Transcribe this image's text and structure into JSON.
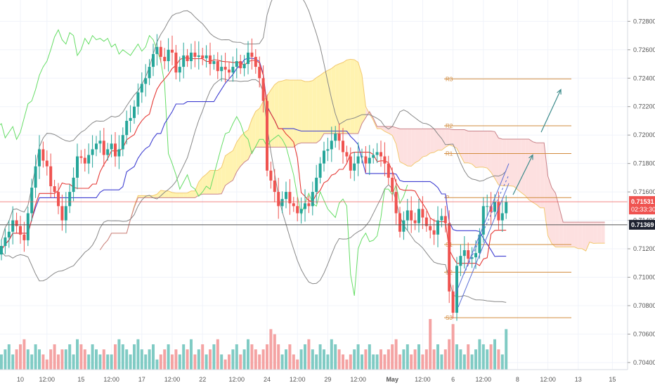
{
  "chart_data": {
    "type": "candlestick",
    "ylim": [
      0.7035,
      0.7295
    ],
    "price_axis": {
      "ticks": [
        {
          "label": "0.72800",
          "value": 0.728
        },
        {
          "label": "0.72600",
          "value": 0.726
        },
        {
          "label": "0.72400",
          "value": 0.724
        },
        {
          "label": "0.72200",
          "value": 0.722
        },
        {
          "label": "0.72000",
          "value": 0.72
        },
        {
          "label": "0.71800",
          "value": 0.718
        },
        {
          "label": "0.71600",
          "value": 0.716
        },
        {
          "label": "0.71400",
          "value": 0.714
        },
        {
          "label": "0.71200",
          "value": 0.712
        },
        {
          "label": "0.71000",
          "value": 0.71
        },
        {
          "label": "0.70800",
          "value": 0.708
        },
        {
          "label": "0.70600",
          "value": 0.706
        },
        {
          "label": "0.70400",
          "value": 0.704
        }
      ],
      "current_price": {
        "value": 0.71531,
        "label": "0.71531",
        "countdown": "02:33:30",
        "color": "#ef5350"
      },
      "crosshair_price": {
        "value": 0.71369,
        "label": "0.71369"
      }
    },
    "time_axis": [
      {
        "label": "10",
        "bar": 5
      },
      {
        "label": "12:00",
        "bar": 12
      },
      {
        "label": "15",
        "bar": 21
      },
      {
        "label": "12:00",
        "bar": 29
      },
      {
        "label": "17",
        "bar": 37
      },
      {
        "label": "12:00",
        "bar": 45
      },
      {
        "label": "22",
        "bar": 53
      },
      {
        "label": "12:00",
        "bar": 62
      },
      {
        "label": "24",
        "bar": 70
      },
      {
        "label": "12:00",
        "bar": 78
      },
      {
        "label": "29",
        "bar": 86
      },
      {
        "label": "12:00",
        "bar": 94
      },
      {
        "label": "May",
        "bar": 103
      },
      {
        "label": "12:00",
        "bar": 111
      },
      {
        "label": "6",
        "bar": 119
      },
      {
        "label": "12:00",
        "bar": 127
      },
      {
        "label": "8",
        "bar": 136
      },
      {
        "label": "12:00",
        "bar": 144
      },
      {
        "label": "13",
        "bar": 152
      },
      {
        "label": "15",
        "bar": 161
      }
    ],
    "close": [
      0.7122,
      0.7128,
      0.7132,
      0.714,
      0.7136,
      0.713,
      0.7126,
      0.7145,
      0.7163,
      0.7178,
      0.719,
      0.7182,
      0.7178,
      0.7164,
      0.716,
      0.715,
      0.714,
      0.715,
      0.716,
      0.717,
      0.7185,
      0.7184,
      0.718,
      0.7186,
      0.719,
      0.7194,
      0.7196,
      0.7186,
      0.719,
      0.7194,
      0.7185,
      0.719,
      0.72,
      0.721,
      0.7212,
      0.722,
      0.723,
      0.7236,
      0.724,
      0.7248,
      0.7257,
      0.7262,
      0.7255,
      0.7252,
      0.726,
      0.7258,
      0.7244,
      0.7248,
      0.7256,
      0.7252,
      0.7258,
      0.7255,
      0.7256,
      0.7254,
      0.7256,
      0.725,
      0.7252,
      0.7245,
      0.7248,
      0.7246,
      0.7244,
      0.7248,
      0.7252,
      0.7247,
      0.725,
      0.7258,
      0.7255,
      0.7248,
      0.724,
      0.7224,
      0.7175,
      0.7168,
      0.716,
      0.715,
      0.7155,
      0.716,
      0.7152,
      0.715,
      0.7145,
      0.7148,
      0.7152,
      0.715,
      0.716,
      0.717,
      0.718,
      0.7189,
      0.719,
      0.7196,
      0.7201,
      0.7196,
      0.7188,
      0.7185,
      0.7175,
      0.718,
      0.7185,
      0.7185,
      0.718,
      0.7184,
      0.7186,
      0.7188,
      0.7185,
      0.718,
      0.717,
      0.716,
      0.7145,
      0.7132,
      0.714,
      0.7147,
      0.714,
      0.7138,
      0.7148,
      0.7142,
      0.7136,
      0.7133,
      0.713,
      0.714,
      0.7143,
      0.7138,
      0.709,
      0.7075,
      0.7108,
      0.7115,
      0.7119,
      0.7113,
      0.7114,
      0.7117,
      0.713,
      0.715,
      0.715,
      0.7146,
      0.7153,
      0.714,
      0.7145,
      0.7153
    ],
    "volume": [
      3,
      4,
      5,
      3,
      4,
      5,
      6,
      4,
      3,
      5,
      4,
      3,
      2,
      4,
      5,
      3,
      4,
      4,
      5,
      3,
      6,
      5,
      4,
      3,
      5,
      4,
      3,
      4,
      3,
      3,
      5,
      6,
      5,
      4,
      3,
      5,
      6,
      4,
      3,
      4,
      5,
      2,
      3,
      4,
      5,
      3,
      4,
      3,
      5,
      4,
      6,
      3,
      4,
      5,
      3,
      4,
      5,
      6,
      3,
      2,
      3,
      4,
      5,
      3,
      4,
      6,
      5,
      4,
      3,
      4,
      5,
      8,
      7,
      5,
      3,
      4,
      5,
      3,
      2,
      4,
      5,
      6,
      4,
      3,
      5,
      4,
      3,
      6,
      5,
      4,
      3,
      2,
      3,
      4,
      5,
      3,
      4,
      5,
      3,
      3,
      4,
      3,
      4,
      5,
      6,
      3,
      4,
      5,
      3,
      4,
      5,
      3,
      4,
      10,
      4,
      5,
      3,
      4,
      6,
      9,
      5,
      4,
      3,
      5,
      3,
      4,
      6,
      5,
      4,
      5,
      6,
      4,
      3,
      8
    ],
    "series": [
      {
        "name": "",
        "color": "#e53935",
        "kind": "tenkan"
      },
      {
        "name": "",
        "color": "#3f3fd1",
        "kind": "kijun"
      },
      {
        "name": "",
        "color": "#66dd66",
        "kind": "chikou"
      },
      {
        "name": "",
        "color": "#888888",
        "kind": "bollinger"
      }
    ],
    "pivots": [
      {
        "label": "R3",
        "value": 0.72395,
        "color": "#d28b3d"
      },
      {
        "label": "R2",
        "value": 0.72065,
        "color": "#d28b3d"
      },
      {
        "label": "R1",
        "value": 0.7187,
        "color": "#d28b3d"
      },
      {
        "label": "P",
        "value": 0.7156,
        "color": "#d28b3d"
      },
      {
        "label": "S1",
        "value": 0.7123,
        "color": "#d28b3d"
      },
      {
        "label": "S2",
        "value": 0.71035,
        "color": "#d28b3d"
      },
      {
        "label": "S3",
        "value": 0.70715,
        "color": "#d28b3d"
      }
    ],
    "colors": {
      "up": "#26a69a",
      "down": "#ef5350",
      "vol_up": "#80cbc4",
      "vol_down": "#f4a3a3",
      "cloud_bull": "#fff3b0",
      "cloud_bear": "#fde0e0",
      "arrow": "#3c8b8b"
    }
  }
}
